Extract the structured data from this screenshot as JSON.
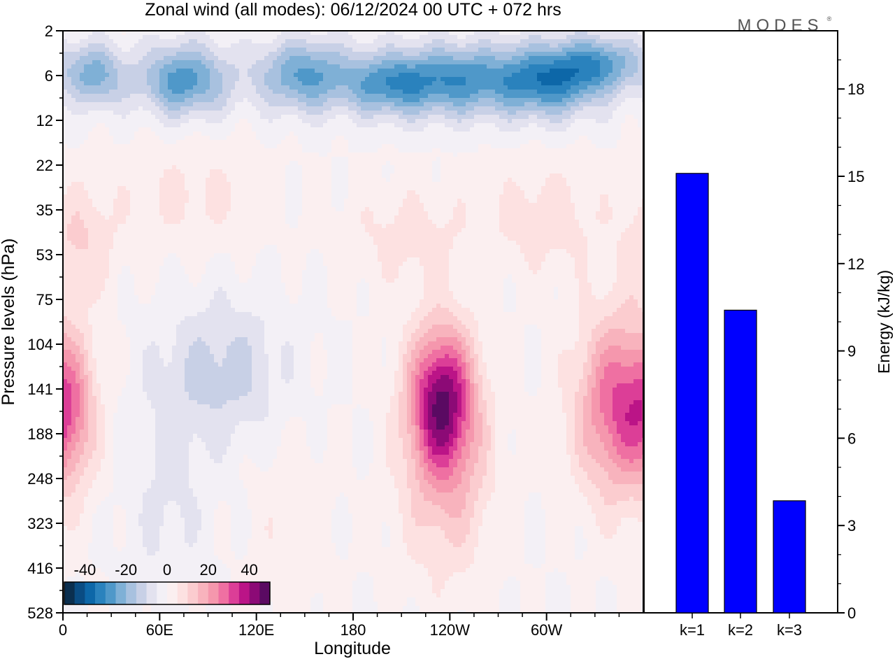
{
  "brand": "MODES",
  "brand_mark": "®",
  "colors": {
    "neg": [
      "#0b2f4f",
      "#0a4c83",
      "#0d67a8",
      "#2a82bd",
      "#4f98c9",
      "#7fb0d6",
      "#a8c1df",
      "#c8d0e6",
      "#e3e2ef",
      "#f3f0f6"
    ],
    "pos": [
      "#fbeff0",
      "#fde1e1",
      "#fbcccf",
      "#f8b3bd",
      "#f597ad",
      "#ef70a2",
      "#dc3e97",
      "#bb1487",
      "#8c0a76",
      "#5a0a62"
    ],
    "bar": "#0000ff"
  },
  "chart_data": [
    {
      "type": "heatmap",
      "title": "Zonal wind (all modes):  06/12/2024  00 UTC  + 072 hrs",
      "xlabel": "Longitude",
      "ylabel": "Pressure levels (hPa)",
      "xticks": [
        "0",
        "60E",
        "120E",
        "180",
        "120W",
        "60W"
      ],
      "xtick_values": [
        0,
        60,
        120,
        180,
        240,
        300
      ],
      "xlim": [
        0,
        360
      ],
      "yticks": [
        "2",
        "6",
        "12",
        "22",
        "35",
        "53",
        "75",
        "104",
        "141",
        "188",
        "248",
        "323",
        "416",
        "528"
      ],
      "colorbar": {
        "ticks": [
          "-40",
          "-20",
          "0",
          "20",
          "40"
        ],
        "tick_values": [
          -40,
          -20,
          0,
          20,
          40
        ],
        "range": [
          -50,
          50
        ],
        "step": 5
      },
      "features": [
        {
          "lon": 20,
          "lev": 1.0,
          "value": -22,
          "slon": 18,
          "slev": 0.7
        },
        {
          "lon": 75,
          "lev": 1.1,
          "value": -28,
          "slon": 28,
          "slev": 0.8
        },
        {
          "lon": 150,
          "lev": 1.0,
          "value": -26,
          "slon": 30,
          "slev": 0.8
        },
        {
          "lon": 200,
          "lev": 1.2,
          "value": -22,
          "slon": 25,
          "slev": 0.7
        },
        {
          "lon": 240,
          "lev": 1.1,
          "value": -27,
          "slon": 35,
          "slev": 0.8
        },
        {
          "lon": 300,
          "lev": 1.1,
          "value": -33,
          "slon": 35,
          "slev": 0.8
        },
        {
          "lon": 335,
          "lev": 0.7,
          "value": -20,
          "slon": 25,
          "slev": 0.6
        },
        {
          "lon": 10,
          "lev": 4.7,
          "value": 10,
          "slon": 22,
          "slev": 1.2
        },
        {
          "lon": 80,
          "lev": 3.7,
          "value": 6,
          "slon": 45,
          "slev": 1.2
        },
        {
          "lon": 215,
          "lev": 4.6,
          "value": 7,
          "slon": 40,
          "slev": 1.1
        },
        {
          "lon": 300,
          "lev": 4.2,
          "value": 8,
          "slon": 35,
          "slev": 1.2
        },
        {
          "lon": 235,
          "lev": 8.2,
          "value": 40,
          "slon": 20,
          "slev": 1.6
        },
        {
          "lon": 238,
          "lev": 10.0,
          "value": 14,
          "slon": 28,
          "slev": 2.2
        },
        {
          "lon": 345,
          "lev": 8.4,
          "value": 30,
          "slon": 26,
          "slev": 2.0
        },
        {
          "lon": 5,
          "lev": 8.5,
          "value": 15,
          "slon": 15,
          "slev": 1.5
        },
        {
          "lon": 100,
          "lev": 7.6,
          "value": -12,
          "slon": 40,
          "slev": 1.6
        },
        {
          "lon": 65,
          "lev": 10.5,
          "value": -6,
          "slon": 25,
          "slev": 2.5
        },
        {
          "lon": 140,
          "lev": 11.0,
          "value": 4,
          "slon": 25,
          "slev": 2.5
        }
      ]
    },
    {
      "type": "bar",
      "categories": [
        "k=1",
        "k=2",
        "k=3"
      ],
      "values": [
        15.1,
        10.4,
        3.85
      ],
      "ylabel": "Energy (kJ/kg)",
      "yticks": [
        "0",
        "3",
        "6",
        "9",
        "12",
        "15",
        "18"
      ],
      "ylim": [
        0,
        20
      ]
    }
  ]
}
